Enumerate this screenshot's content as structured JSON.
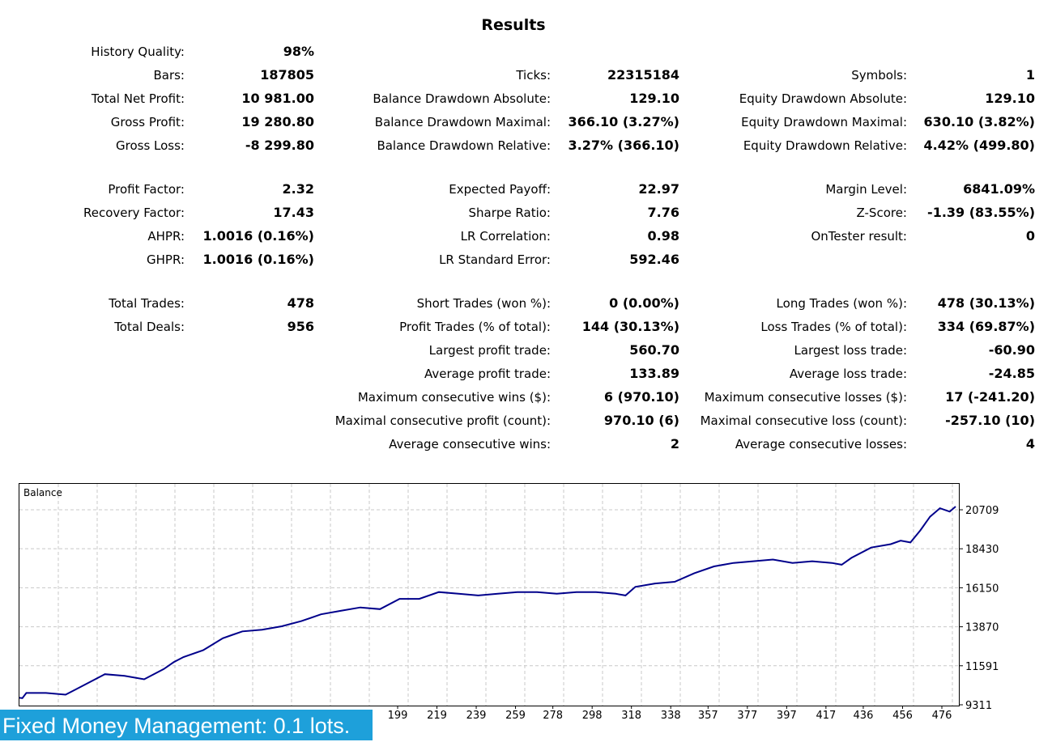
{
  "title": "Results",
  "rows": [
    {
      "c1l": "History Quality:",
      "c1v": "98%",
      "c2l": "",
      "c2v": "",
      "c3l": "",
      "c3v": ""
    },
    {
      "c1l": "Bars:",
      "c1v": "187805",
      "c2l": "Ticks:",
      "c2v": "22315184",
      "c3l": "Symbols:",
      "c3v": "1"
    },
    {
      "c1l": "Total Net Profit:",
      "c1v": "10 981.00",
      "c2l": "Balance Drawdown Absolute:",
      "c2v": "129.10",
      "c3l": "Equity Drawdown Absolute:",
      "c3v": "129.10"
    },
    {
      "c1l": "Gross Profit:",
      "c1v": "19 280.80",
      "c2l": "Balance Drawdown Maximal:",
      "c2v": "366.10 (3.27%)",
      "c3l": "Equity Drawdown Maximal:",
      "c3v": "630.10 (3.82%)"
    },
    {
      "c1l": "Gross Loss:",
      "c1v": "-8 299.80",
      "c2l": "Balance Drawdown Relative:",
      "c2v": "3.27% (366.10)",
      "c3l": "Equity Drawdown Relative:",
      "c3v": "4.42% (499.80)"
    },
    {
      "c1l": "Profit Factor:",
      "c1v": "2.32",
      "c2l": "Expected Payoff:",
      "c2v": "22.97",
      "c3l": "Margin Level:",
      "c3v": "6841.09%"
    },
    {
      "c1l": "Recovery Factor:",
      "c1v": "17.43",
      "c2l": "Sharpe Ratio:",
      "c2v": "7.76",
      "c3l": "Z-Score:",
      "c3v": "-1.39 (83.55%)"
    },
    {
      "c1l": "AHPR:",
      "c1v": "1.0016 (0.16%)",
      "c2l": "LR Correlation:",
      "c2v": "0.98",
      "c3l": "OnTester result:",
      "c3v": "0"
    },
    {
      "c1l": "GHPR:",
      "c1v": "1.0016 (0.16%)",
      "c2l": "LR Standard Error:",
      "c2v": "592.46",
      "c3l": "",
      "c3v": ""
    },
    {
      "c1l": "Total Trades:",
      "c1v": "478",
      "c2l": "Short Trades (won %):",
      "c2v": "0 (0.00%)",
      "c3l": "Long Trades (won %):",
      "c3v": "478 (30.13%)"
    },
    {
      "c1l": "Total Deals:",
      "c1v": "956",
      "c2l": "Profit Trades (% of total):",
      "c2v": "144 (30.13%)",
      "c3l": "Loss Trades (% of total):",
      "c3v": "334 (69.87%)"
    },
    {
      "c1l": "",
      "c1v": "",
      "c2l": "Largest profit trade:",
      "c2v": "560.70",
      "c3l": "Largest loss trade:",
      "c3v": "-60.90"
    },
    {
      "c1l": "",
      "c1v": "",
      "c2l": "Average profit trade:",
      "c2v": "133.89",
      "c3l": "Average loss trade:",
      "c3v": "-24.85"
    },
    {
      "c1l": "",
      "c1v": "",
      "c2l": "Maximum consecutive wins ($):",
      "c2v": "6 (970.10)",
      "c3l": "Maximum consecutive losses ($):",
      "c3v": "17 (-241.20)"
    },
    {
      "c1l": "",
      "c1v": "",
      "c2l": "Maximal consecutive profit (count):",
      "c2v": "970.10 (6)",
      "c3l": "Maximal consecutive loss (count):",
      "c3v": "-257.10 (10)"
    },
    {
      "c1l": "",
      "c1v": "",
      "c2l": "Average consecutive wins:",
      "c2v": "2",
      "c3l": "Average consecutive losses:",
      "c3v": "4"
    }
  ],
  "chart_data": {
    "type": "line",
    "title": "Balance",
    "ylim": [
      9311,
      22000
    ],
    "xlim": [
      0,
      483
    ],
    "yticks": [
      9311,
      11591,
      13870,
      16150,
      18430,
      20709
    ],
    "xticks": [
      199,
      219,
      239,
      259,
      278,
      298,
      318,
      338,
      357,
      377,
      397,
      417,
      436,
      456,
      476
    ],
    "grid": true,
    "line_color": "#00008b",
    "series": [
      {
        "x": [
          0,
          8,
          10,
          20,
          30,
          35,
          40,
          50,
          60,
          70,
          80,
          85,
          90,
          100,
          110,
          115,
          120,
          130,
          140,
          150,
          160,
          170,
          180,
          190,
          200,
          210,
          220,
          230,
          240,
          250,
          260,
          270,
          280,
          290,
          300,
          310,
          315,
          320,
          330,
          340,
          350,
          360,
          370,
          380,
          390,
          400,
          410,
          420,
          425,
          430,
          440,
          450,
          455,
          460,
          465,
          470,
          475,
          480,
          483
        ],
        "y": [
          9800,
          9700,
          10000,
          10000,
          9900,
          10200,
          10500,
          11100,
          11000,
          10800,
          11400,
          11800,
          12100,
          12500,
          13200,
          13400,
          13600,
          13700,
          13900,
          14200,
          14600,
          14800,
          15000,
          14900,
          15500,
          15500,
          15900,
          15800,
          15700,
          15800,
          15900,
          15900,
          15800,
          15900,
          15900,
          15800,
          15700,
          16200,
          16400,
          16500,
          17000,
          17400,
          17600,
          17700,
          17800,
          17600,
          17700,
          17600,
          17500,
          17900,
          18500,
          18700,
          18900,
          18800,
          19500,
          20300,
          20800,
          20600,
          20900
        ]
      }
    ]
  },
  "banner": "Fixed Money Management: 0.1 lots."
}
